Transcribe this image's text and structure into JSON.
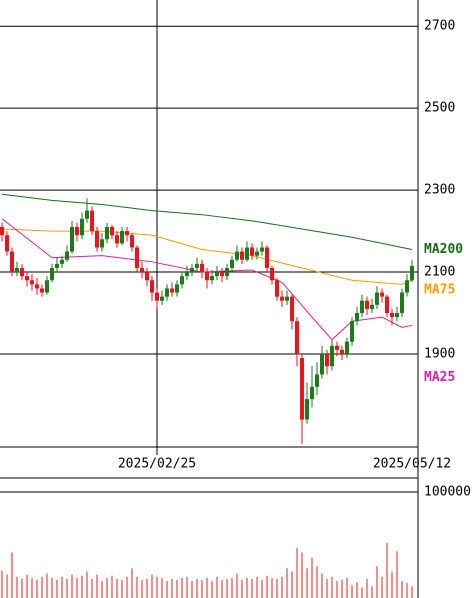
{
  "chart_data": [
    {
      "type": "candlestick",
      "categories": [
        null,
        null,
        null,
        null,
        null,
        null,
        null,
        null,
        null,
        null,
        null,
        null,
        null,
        null,
        null,
        null,
        null,
        null,
        null,
        null,
        null,
        null,
        null,
        null,
        null,
        null,
        null,
        null,
        null,
        null,
        null,
        "2025/02/25",
        null,
        null,
        null,
        null,
        null,
        null,
        null,
        null,
        null,
        null,
        null,
        null,
        null,
        null,
        null,
        null,
        null,
        null,
        null,
        null,
        null,
        null,
        null,
        null,
        null,
        null,
        null,
        null,
        null,
        null,
        null,
        null,
        null,
        null,
        null,
        null,
        null,
        null,
        null,
        null,
        null,
        null,
        null,
        null,
        null,
        null,
        null,
        null,
        null,
        null,
        "2025/05/12"
      ],
      "open": [
        2210,
        2190,
        2150,
        2100,
        2110,
        2090,
        2080,
        2070,
        2060,
        2050,
        2080,
        2110,
        2120,
        2130,
        2150,
        2210,
        2190,
        2230,
        2250,
        2200,
        2160,
        2180,
        2210,
        2190,
        2170,
        2200,
        2190,
        2160,
        2110,
        2100,
        2080,
        2050,
        2030,
        2040,
        2060,
        2050,
        2070,
        2090,
        2100,
        2110,
        2120,
        2100,
        2080,
        2090,
        2100,
        2090,
        2110,
        2130,
        2150,
        2130,
        2160,
        2140,
        2150,
        2160,
        2110,
        2080,
        2040,
        2030,
        2040,
        1980,
        1890,
        1740,
        1790,
        1820,
        1850,
        1900,
        1870,
        1920,
        1910,
        1900,
        1930,
        1980,
        2000,
        2030,
        2010,
        2020,
        2050,
        2040,
        2000,
        1990,
        2000,
        2050,
        2080
      ],
      "high": [
        2220,
        2200,
        2160,
        2125,
        2120,
        2100,
        2095,
        2085,
        2070,
        2090,
        2120,
        2135,
        2140,
        2165,
        2225,
        2220,
        2245,
        2280,
        2260,
        2210,
        2195,
        2220,
        2215,
        2200,
        2210,
        2210,
        2195,
        2165,
        2125,
        2110,
        2090,
        2060,
        2055,
        2070,
        2075,
        2080,
        2100,
        2115,
        2120,
        2135,
        2130,
        2110,
        2105,
        2115,
        2110,
        2120,
        2140,
        2165,
        2160,
        2175,
        2170,
        2160,
        2175,
        2165,
        2115,
        2085,
        2055,
        2055,
        2045,
        1990,
        1900,
        1830,
        1870,
        1880,
        1920,
        1910,
        1935,
        1930,
        1920,
        1940,
        1990,
        2015,
        2045,
        2040,
        2035,
        2065,
        2060,
        2045,
        2010,
        2015,
        2060,
        2095,
        2130
      ],
      "low": [
        2175,
        2140,
        2090,
        2090,
        2080,
        2065,
        2055,
        2045,
        2040,
        2045,
        2075,
        2100,
        2110,
        2125,
        2145,
        2175,
        2180,
        2220,
        2190,
        2150,
        2150,
        2170,
        2180,
        2160,
        2165,
        2175,
        2150,
        2100,
        2085,
        2065,
        2030,
        2010,
        2020,
        2030,
        2040,
        2040,
        2060,
        2080,
        2090,
        2100,
        2085,
        2060,
        2070,
        2080,
        2075,
        2080,
        2100,
        2125,
        2120,
        2125,
        2130,
        2130,
        2140,
        2100,
        2070,
        2030,
        2015,
        2020,
        1960,
        1870,
        1680,
        1730,
        1770,
        1800,
        1840,
        1850,
        1860,
        1895,
        1885,
        1890,
        1920,
        1970,
        1990,
        1995,
        2000,
        2010,
        2025,
        1990,
        1970,
        1980,
        1990,
        2040,
        2075
      ],
      "close": [
        2190,
        2150,
        2100,
        2110,
        2090,
        2080,
        2070,
        2060,
        2050,
        2080,
        2110,
        2120,
        2130,
        2150,
        2210,
        2190,
        2230,
        2250,
        2200,
        2160,
        2180,
        2210,
        2190,
        2170,
        2200,
        2190,
        2160,
        2110,
        2100,
        2080,
        2050,
        2030,
        2040,
        2060,
        2050,
        2070,
        2090,
        2100,
        2110,
        2120,
        2100,
        2080,
        2090,
        2100,
        2090,
        2110,
        2130,
        2150,
        2130,
        2160,
        2140,
        2150,
        2160,
        2110,
        2080,
        2040,
        2030,
        2040,
        1980,
        1900,
        1740,
        1790,
        1820,
        1850,
        1900,
        1870,
        1920,
        1910,
        1900,
        1930,
        1980,
        2000,
        2030,
        2010,
        2020,
        2050,
        2040,
        2000,
        1990,
        2000,
        2050,
        2080,
        2115
      ],
      "up_color": "#1f7a1f",
      "down_color": "#e8141e",
      "ylim": [
        1673,
        2764
      ],
      "yticks": [
        1900,
        2100,
        2300,
        2500,
        2700
      ],
      "grid": true,
      "overlays": [
        {
          "name": "MA200",
          "color": "#1a6b1a",
          "x": [
            0,
            10,
            20,
            30,
            40,
            50,
            60,
            70,
            80,
            82
          ],
          "values": [
            2290,
            2275,
            2265,
            2250,
            2240,
            2225,
            2205,
            2185,
            2160,
            2155
          ]
        },
        {
          "name": "MA75",
          "color": "#f0a000",
          "x": [
            0,
            10,
            20,
            30,
            40,
            50,
            60,
            70,
            80,
            82
          ],
          "values": [
            2205,
            2200,
            2200,
            2190,
            2155,
            2140,
            2110,
            2080,
            2070,
            2080
          ]
        },
        {
          "name": "MA25",
          "color": "#e020a0",
          "x": [
            0,
            10,
            20,
            30,
            40,
            50,
            56,
            62,
            66,
            70,
            76,
            80,
            82
          ],
          "values": [
            2230,
            2135,
            2140,
            2125,
            2100,
            2105,
            2075,
            1990,
            1935,
            1980,
            1990,
            1965,
            1970
          ]
        }
      ]
    },
    {
      "type": "bar",
      "color": "#e02020",
      "values": [
        260000,
        220000,
        430000,
        200000,
        180000,
        220000,
        190000,
        170000,
        200000,
        230000,
        190000,
        170000,
        200000,
        180000,
        220000,
        190000,
        210000,
        250000,
        180000,
        220000,
        160000,
        190000,
        210000,
        180000,
        170000,
        200000,
        280000,
        200000,
        170000,
        180000,
        220000,
        200000,
        190000,
        160000,
        180000,
        170000,
        190000,
        200000,
        160000,
        180000,
        170000,
        190000,
        160000,
        200000,
        170000,
        180000,
        190000,
        230000,
        170000,
        190000,
        180000,
        200000,
        170000,
        210000,
        190000,
        180000,
        200000,
        280000,
        250000,
        470000,
        430000,
        280000,
        380000,
        300000,
        230000,
        180000,
        200000,
        160000,
        170000,
        190000,
        120000,
        150000,
        100000,
        180000,
        110000,
        300000,
        200000,
        520000,
        250000,
        440000,
        160000,
        140000,
        110000
      ],
      "ylim": [
        0,
        1113000
      ],
      "yticks": [
        1000000
      ],
      "grid": true
    }
  ]
}
